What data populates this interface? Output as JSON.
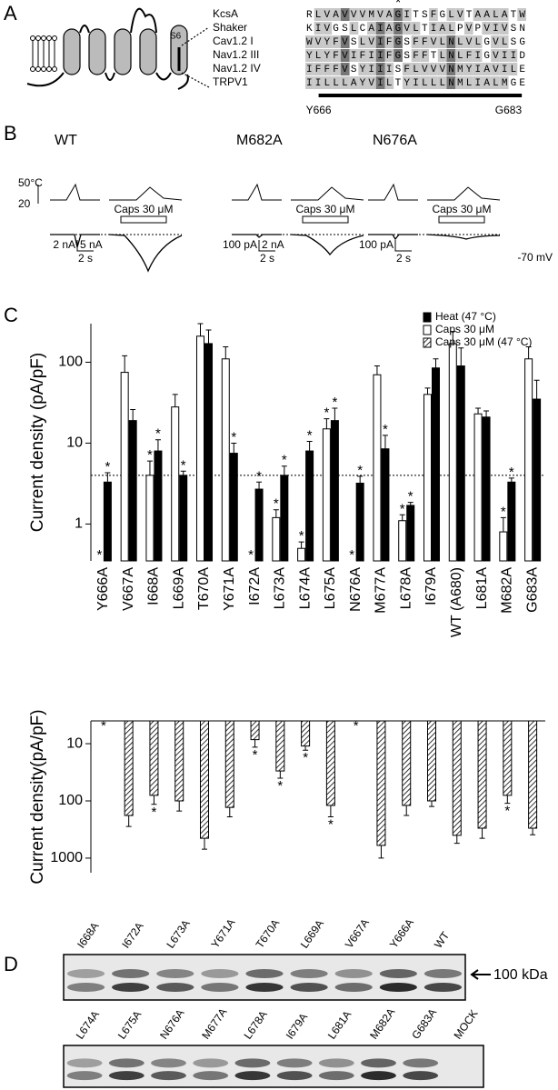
{
  "panel_a": {
    "label": "A",
    "segment": "S6",
    "star": "*",
    "alignment": [
      {
        "name": "KcsA",
        "sequence": "RLVAVVVMVAGITSFGLVTAALATW"
      },
      {
        "name": "Shaker",
        "sequence": "KIVGSLCAIAGVLTIALPVPVIVSN"
      },
      {
        "name": "Cav1.2 I",
        "sequence": "WVYFVSLVIFGSFFVLNLVLGVLSG"
      },
      {
        "name": "Nav1.2 III",
        "sequence": "YLYFVIFIIFGSFFTLNLFIGVIID"
      },
      {
        "name": "Nav1.2 IV",
        "sequence": "IFFFVSYIIISFLVVVNMYIAVILE"
      },
      {
        "name": "TRPV1",
        "sequence": "IILLLAYVILTYILLLNMLIALMGE"
      }
    ],
    "range_start": "Y666",
    "range_end": "G683"
  },
  "panel_b": {
    "label": "B",
    "temp_max": "50°C",
    "temp_min": "20",
    "holding": "-70 mV",
    "groups": [
      {
        "name": "WT",
        "stimulus": "Caps 30 μM",
        "current_scales": [
          "2 nA",
          "5 nA"
        ],
        "time_scale": "2 s"
      },
      {
        "name": "M682A",
        "stimulus": "Caps 30 μM",
        "current_scales": [
          "100 pA",
          "2 nA"
        ],
        "time_scale": "2 s"
      },
      {
        "name": "N676A",
        "stimulus": "Caps 30 μM",
        "current_scales": [
          "100 pA"
        ],
        "time_scale": "2 s"
      }
    ]
  },
  "panel_c": {
    "label": "C"
  },
  "chart_data": [
    {
      "type": "bar",
      "y_label": "Current density (pA/pF)",
      "log_scale": true,
      "ylim": [
        0.35,
        300
      ],
      "yticks": [
        1,
        10,
        100
      ],
      "reference_line": 4,
      "sig_label": "*",
      "categories": [
        "Y666A",
        "V667A",
        "I668A",
        "L669A",
        "T670A",
        "Y671A",
        "I672A",
        "L673A",
        "L674A",
        "L675A",
        "N676A",
        "M677A",
        "L678A",
        "I679A",
        "WT (A680)",
        "L681A",
        "M682A",
        "G683A"
      ],
      "series": [
        {
          "name": "Caps 30 μM",
          "color": "#ffffff",
          "values": [
            null,
            75,
            4,
            28,
            210,
            110,
            null,
            1.2,
            0.5,
            15,
            null,
            70,
            1.1,
            40,
            170,
            23,
            0.8,
            110
          ],
          "errors": [
            null,
            45,
            2,
            12,
            90,
            45,
            null,
            0.3,
            0.1,
            5,
            null,
            20,
            0.2,
            8,
            70,
            4,
            0.4,
            45
          ],
          "significant": [
            true,
            false,
            true,
            false,
            false,
            false,
            true,
            true,
            true,
            true,
            true,
            false,
            true,
            false,
            false,
            false,
            true,
            false
          ]
        },
        {
          "name": "Heat (47 °C)",
          "color": "#000000",
          "values": [
            3.3,
            19,
            8,
            4,
            170,
            7.5,
            2.7,
            4,
            8,
            19,
            3.2,
            8.5,
            1.7,
            85,
            90,
            21,
            3.3,
            35
          ],
          "errors": [
            1,
            7,
            3,
            0.5,
            80,
            2.5,
            0.6,
            1.2,
            2.5,
            8,
            0.7,
            4,
            0.15,
            25,
            60,
            4,
            0.4,
            25
          ],
          "significant": [
            true,
            false,
            true,
            true,
            false,
            true,
            true,
            true,
            true,
            true,
            true,
            true,
            true,
            false,
            false,
            false,
            true,
            false
          ]
        }
      ]
    },
    {
      "type": "bar",
      "y_label": "Current density(pA/pF)",
      "log_scale": true,
      "inverted": true,
      "ylim": [
        4,
        1800
      ],
      "yticks": [
        10,
        100,
        1000
      ],
      "sig_label": "*",
      "series": [
        {
          "name": "Caps 30 μM (47 °C)",
          "color": "#ffffff",
          "hatch": true,
          "values": [
            null,
            180,
            80,
            100,
            450,
            130,
            8.5,
            30,
            11,
            120,
            null,
            600,
            120,
            100,
            400,
            300,
            80,
            300
          ],
          "errors": [
            null,
            100,
            35,
            50,
            250,
            60,
            3,
            10,
            2,
            70,
            null,
            400,
            60,
            25,
            150,
            150,
            30,
            90
          ],
          "significant": [
            true,
            false,
            true,
            false,
            false,
            false,
            true,
            true,
            true,
            true,
            true,
            false,
            false,
            false,
            false,
            false,
            true,
            false
          ]
        }
      ]
    }
  ],
  "panel_d": {
    "label": "D",
    "marker": "100 kDa",
    "blot_top": [
      "I668A",
      "I672A",
      "L673A",
      "Y671A",
      "T670A",
      "L669A",
      "V667A",
      "Y666A",
      "WT"
    ],
    "blot_bottom": [
      "L674A",
      "L675A",
      "N676A",
      "M677A",
      "L678A",
      "I679A",
      "L681A",
      "M682A",
      "G683A",
      "MOCK"
    ]
  }
}
